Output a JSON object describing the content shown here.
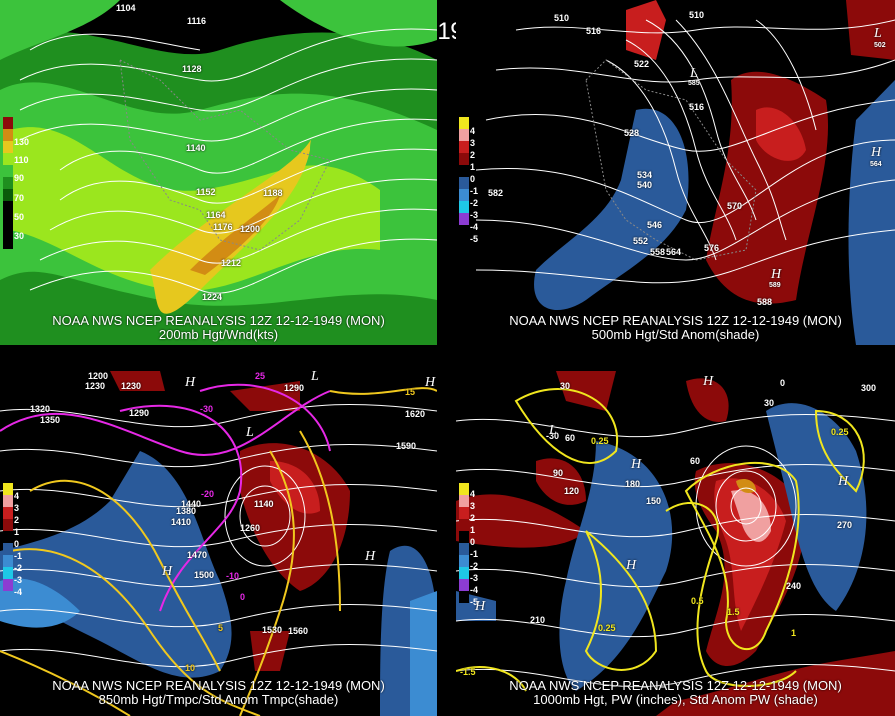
{
  "title": "12Z 12-12-1949 (MON)",
  "panels": [
    {
      "caption1": "NOAA NWS NCEP REANALYSIS 12Z 12-12-1949 (MON)",
      "caption2": "200mb Hgt/Wnd(kts)",
      "legend": [
        "130",
        "110",
        "90",
        "70",
        "50",
        "30"
      ],
      "contour_labels": [
        "1104",
        "1116",
        "1128",
        "1140",
        "1152",
        "1164",
        "1176",
        "1188",
        "1200",
        "1212",
        "1224"
      ]
    },
    {
      "caption1": "NOAA NWS NCEP REANALYSIS 12Z 12-12-1949 (MON)",
      "caption2": "500mb Hgt/Std Anom(shade)",
      "legend": [
        "4",
        "3",
        "2",
        "1",
        "0",
        "-1",
        "-2",
        "-3",
        "-4",
        "-5"
      ],
      "contour_labels": [
        "510",
        "516",
        "522",
        "528",
        "534",
        "540",
        "546",
        "552",
        "558",
        "564",
        "570",
        "576",
        "582",
        "588",
        "516",
        "510"
      ],
      "centers": [
        "L",
        "L",
        "H",
        "H"
      ],
      "center_values": [
        "502",
        "585",
        "564",
        "589"
      ]
    },
    {
      "caption1": "NOAA NWS NCEP REANALYSIS 12Z 12-12-1949 (MON)",
      "caption2": "850mb Hgt/Tmpc/Std Anom Tmpc(shade)",
      "legend": [
        "4",
        "3",
        "2",
        "1",
        "0",
        "-1",
        "-2",
        "-3",
        "-4"
      ],
      "contour_labels": [
        "1200",
        "1230",
        "1290",
        "1320",
        "1350",
        "1380",
        "1410",
        "1440",
        "1470",
        "1500",
        "1530",
        "1560",
        "1590",
        "1620",
        "1260",
        "1290",
        "1230",
        "1140"
      ],
      "temp_labels": [
        "-30",
        "-20",
        "-10",
        "0",
        "5",
        "10",
        "15",
        "25"
      ],
      "centers": [
        "H",
        "L",
        "H",
        "H",
        "H",
        "L"
      ]
    },
    {
      "caption1": "NOAA NWS NCEP REANALYSIS 12Z 12-12-1949 (MON)",
      "caption2": "1000mb Hgt, PW (inches), Std Anom PW (shade)",
      "legend": [
        "4",
        "3",
        "2",
        "1",
        "0",
        "-1",
        "-2",
        "-3",
        "-4",
        "-5"
      ],
      "contour_labels": [
        "-30",
        "30",
        "60",
        "90",
        "120",
        "150",
        "180",
        "210",
        "240",
        "270",
        "300",
        "60",
        "30",
        "0",
        "-1.5"
      ],
      "pw_labels": [
        "0.25",
        "0.5",
        "1",
        "1.5",
        "0.25",
        "0.25"
      ],
      "centers": [
        "H",
        "H",
        "H",
        "H",
        "H",
        "L"
      ]
    }
  ],
  "colors": {
    "green_dark": "#1f8f1f",
    "green_mid": "#3cc33c",
    "green_light": "#9be61e",
    "yellow": "#e6c81e",
    "orange": "#d28c14",
    "anom_red": "#8c0a0a",
    "anom_red2": "#c81e1e",
    "anom_pink": "#f0a0a0",
    "anom_blue": "#2a5a9a",
    "anom_blue2": "#3c8cd2",
    "temp_magenta": "#e628e6",
    "pw_yellow": "#f0e61e"
  }
}
